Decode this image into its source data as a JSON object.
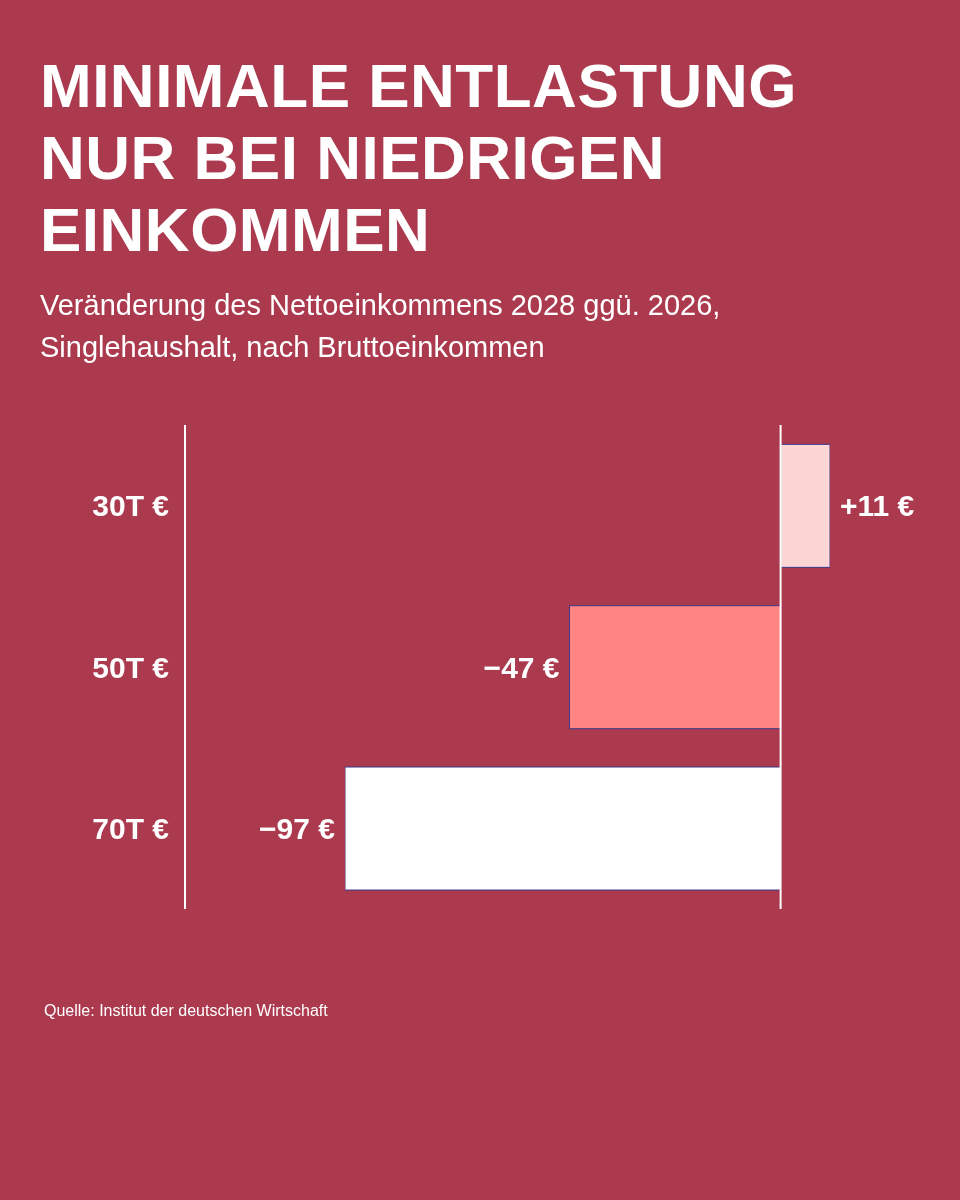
{
  "chart_data": {
    "type": "bar",
    "orientation": "horizontal",
    "title": "MINIMALE ENTLASTUNG\nNUR BEI NIEDRIGEN\nEINKOMMEN",
    "subtitle": "Veränderung des Nettoeinkommens 2028 ggü. 2026,\nSinglehaushalt, nach Bruttoeinkommen",
    "categories": [
      "30T €",
      "50T €",
      "70T €"
    ],
    "values": [
      11,
      -47,
      -97
    ],
    "colors": [
      "#fdd5d5",
      "#ff8585",
      "#ffffff"
    ],
    "value_labels": [
      "+11 €",
      "−47 €",
      "−97 €"
    ],
    "ref_lines": [
      {
        "axis": "x",
        "value": 0,
        "color": "#ffffff"
      }
    ],
    "grid": false,
    "legend": false,
    "annotations": [
      "Quelle: Institut der deutschen Wirtschaft"
    ]
  }
}
